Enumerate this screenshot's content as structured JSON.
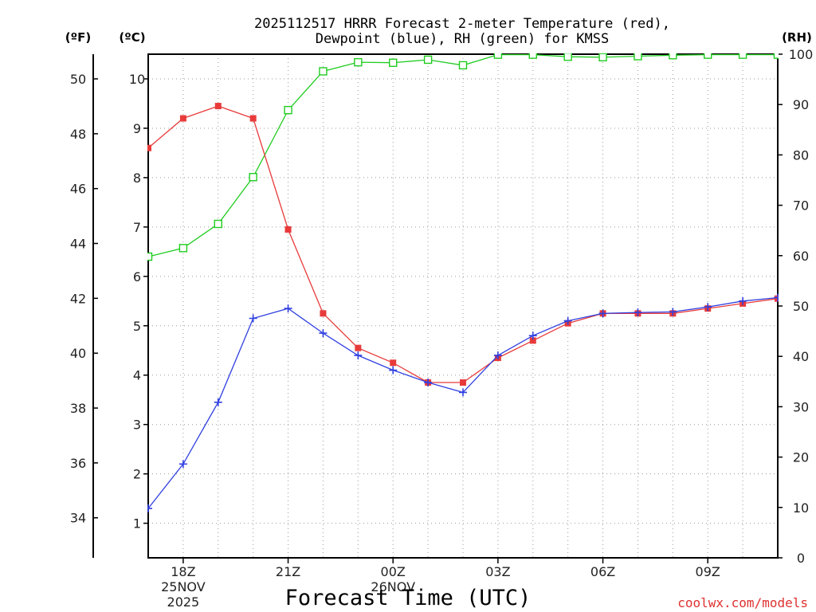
{
  "chart_data": {
    "type": "line",
    "title_line1": "2025112517 HRRR Forecast 2-meter Temperature (red),",
    "title_line2": "Dewpoint (blue), RH (green) for KMSS",
    "xlabel": "Forecast Time (UTC)",
    "credit": "coolwx.com/models",
    "units": {
      "fahrenheit": "(ºF)",
      "celsius": "(ºC)",
      "rh": "(RH)"
    },
    "x_hours": [
      17,
      18,
      19,
      20,
      21,
      22,
      23,
      24,
      25,
      26,
      27,
      28,
      29,
      30,
      31,
      32,
      33,
      34,
      35
    ],
    "xlim": [
      17,
      35
    ],
    "x_ticks": [
      {
        "hour": 18,
        "label": "18Z",
        "sub1": "25NOV",
        "sub2": "2025"
      },
      {
        "hour": 21,
        "label": "21Z",
        "sub1": "",
        "sub2": ""
      },
      {
        "hour": 24,
        "label": "00Z",
        "sub1": "26NOV",
        "sub2": ""
      },
      {
        "hour": 27,
        "label": "03Z",
        "sub1": "",
        "sub2": ""
      },
      {
        "hour": 30,
        "label": "06Z",
        "sub1": "",
        "sub2": ""
      },
      {
        "hour": 33,
        "label": "09Z",
        "sub1": "",
        "sub2": ""
      }
    ],
    "celsius_range": [
      0.3,
      10.5
    ],
    "celsius_ticks": [
      "1",
      "2",
      "3",
      "4",
      "5",
      "6",
      "7",
      "8",
      "9",
      "10"
    ],
    "fahrenheit_ticks": [
      "34",
      "36",
      "38",
      "40",
      "42",
      "44",
      "46",
      "48",
      "50"
    ],
    "rh_range": [
      0,
      100
    ],
    "rh_ticks": [
      "0",
      "10",
      "20",
      "30",
      "40",
      "50",
      "60",
      "70",
      "80",
      "90",
      "100"
    ],
    "series": [
      {
        "name": "Temperature (C)",
        "color": "#e83a3a",
        "marker": "filled-square",
        "axis": "celsius",
        "values": [
          8.6,
          9.2,
          9.45,
          9.2,
          6.95,
          5.25,
          4.55,
          4.25,
          3.85,
          3.85,
          4.35,
          4.7,
          5.05,
          5.25,
          5.25,
          5.25,
          5.35,
          5.45,
          5.55
        ]
      },
      {
        "name": "Dewpoint (C)",
        "color": "#3040e0",
        "marker": "plus",
        "axis": "celsius",
        "values": [
          1.3,
          2.2,
          3.45,
          5.15,
          5.35,
          4.85,
          4.4,
          4.1,
          3.85,
          3.65,
          4.4,
          4.8,
          5.1,
          5.25,
          5.27,
          5.28,
          5.38,
          5.5,
          5.57
        ]
      },
      {
        "name": "RH (%)",
        "color": "#20cc20",
        "marker": "open-square",
        "axis": "rh",
        "values": [
          59.8,
          61.5,
          66.3,
          75.6,
          88.9,
          96.6,
          98.4,
          98.3,
          98.9,
          97.8,
          99.9,
          99.9,
          99.5,
          99.4,
          99.6,
          99.8,
          99.9,
          99.9,
          99.9
        ]
      }
    ]
  }
}
